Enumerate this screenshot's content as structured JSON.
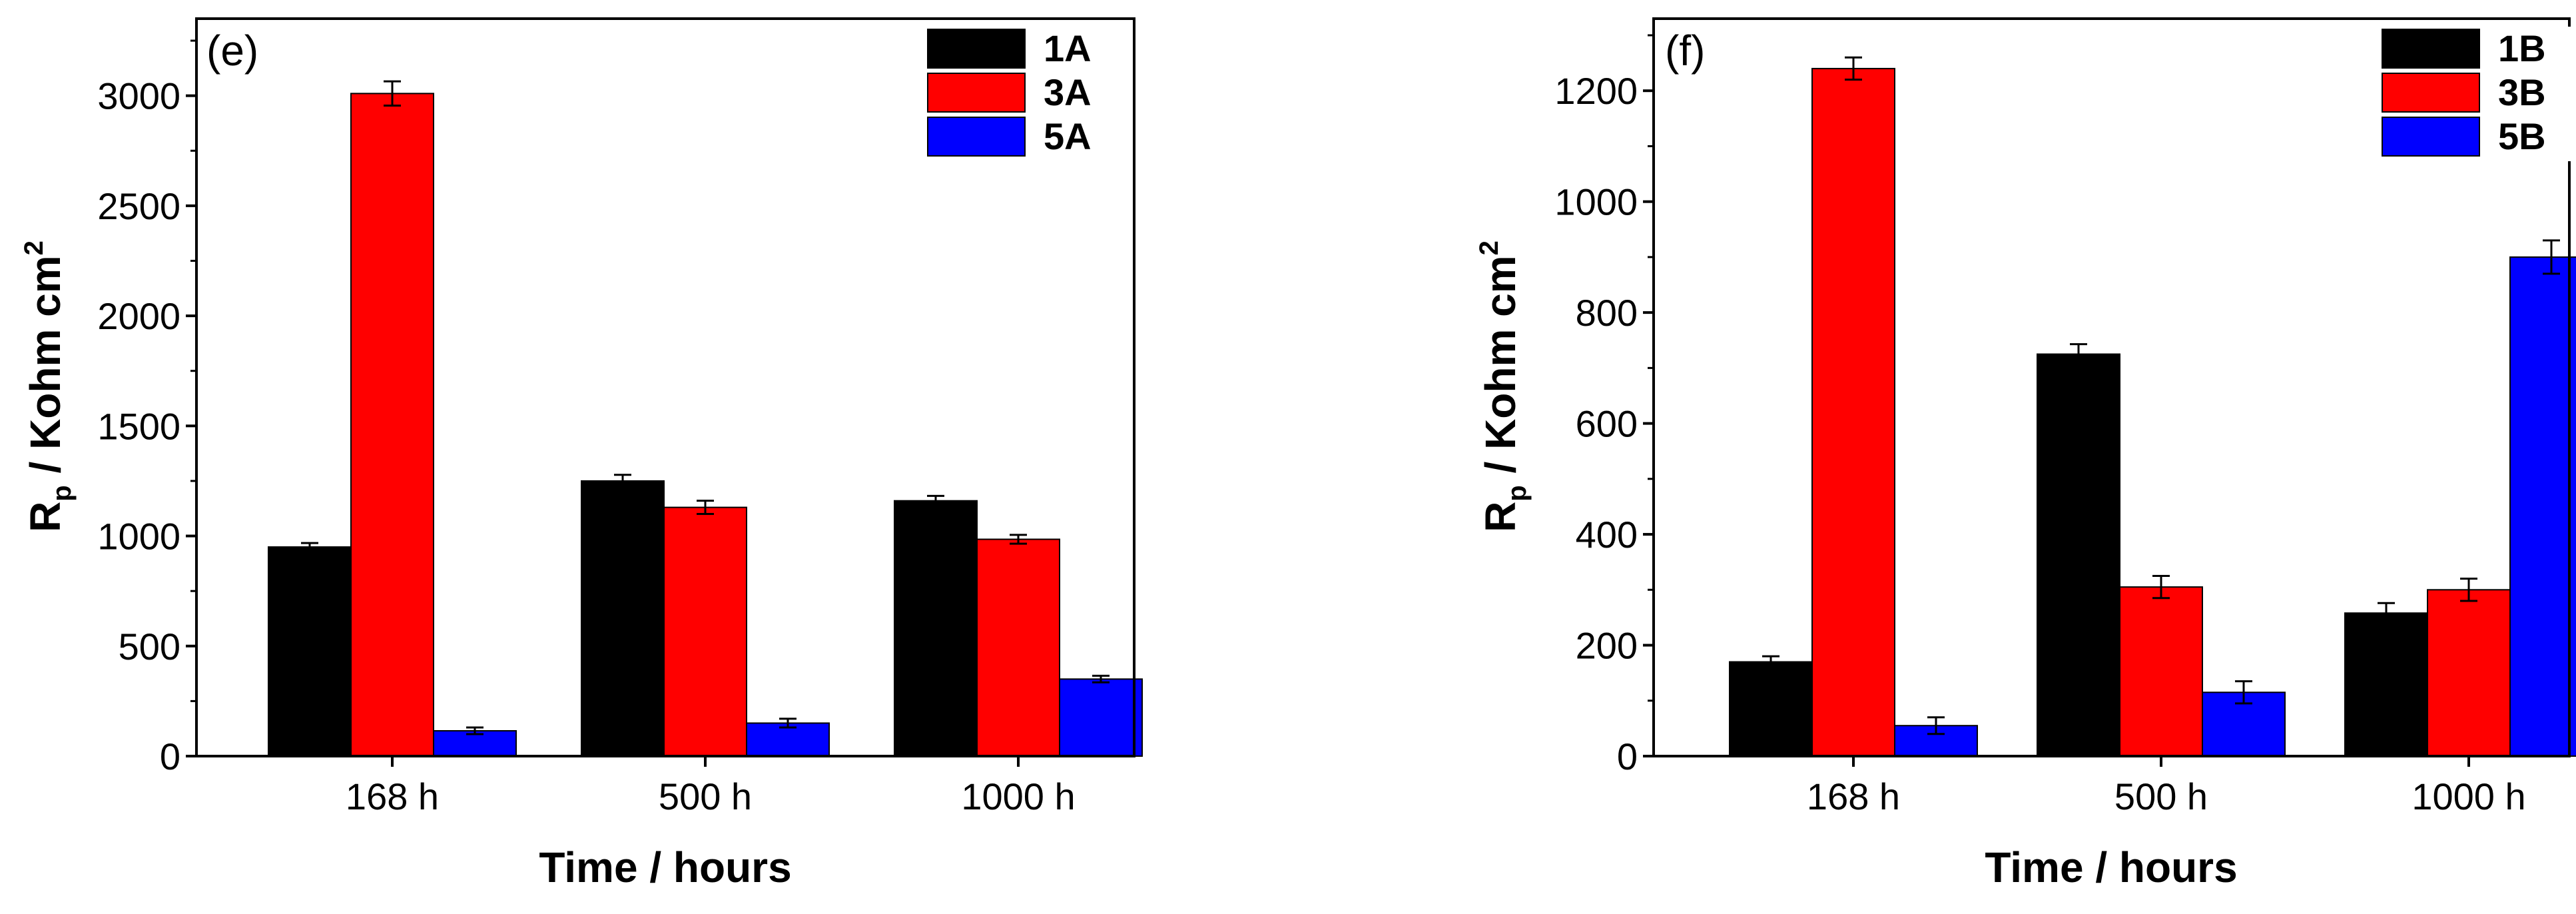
{
  "chart_data": [
    {
      "type": "bar",
      "panel_label": "(e)",
      "categories": [
        "168 h",
        "500 h",
        "1000 h"
      ],
      "series": [
        {
          "name": "1A",
          "color": "#000000",
          "values": [
            950,
            1250,
            1160
          ],
          "errors": [
            18,
            28,
            22
          ]
        },
        {
          "name": "3A",
          "color": "#ff0000",
          "values": [
            3010,
            1130,
            985
          ],
          "errors": [
            55,
            30,
            20
          ]
        },
        {
          "name": "5A",
          "color": "#0000ff",
          "values": [
            115,
            150,
            350
          ],
          "errors": [
            15,
            20,
            15
          ]
        }
      ],
      "xlabel": "Time / hours",
      "ylabel_parts": {
        "r": "R",
        "sub": "p",
        "mid": " / Kohm cm",
        "sup": "2"
      },
      "ylim": [
        0,
        3350
      ],
      "yticks": [
        "0",
        "500",
        "1000",
        "1500",
        "2000",
        "2500",
        "3000"
      ],
      "legend_position": "top-right",
      "grid": false
    },
    {
      "type": "bar",
      "panel_label": "(f)",
      "categories": [
        "168 h",
        "500 h",
        "1000 h"
      ],
      "series": [
        {
          "name": "1B",
          "color": "#000000",
          "values": [
            170,
            725,
            258
          ],
          "errors": [
            10,
            18,
            18
          ]
        },
        {
          "name": "3B",
          "color": "#ff0000",
          "values": [
            1240,
            305,
            300
          ],
          "errors": [
            20,
            20,
            20
          ]
        },
        {
          "name": "5B",
          "color": "#0000ff",
          "values": [
            55,
            115,
            900
          ],
          "errors": [
            15,
            20,
            30
          ]
        }
      ],
      "xlabel": "Time / hours",
      "ylabel_parts": {
        "r": "R",
        "sub": "p",
        "mid": " / Kohm cm",
        "sup": "2"
      },
      "ylim": [
        0,
        1330
      ],
      "yticks": [
        "0",
        "200",
        "400",
        "600",
        "800",
        "1000",
        "1200"
      ],
      "legend_position": "top-right",
      "grid": false
    }
  ]
}
